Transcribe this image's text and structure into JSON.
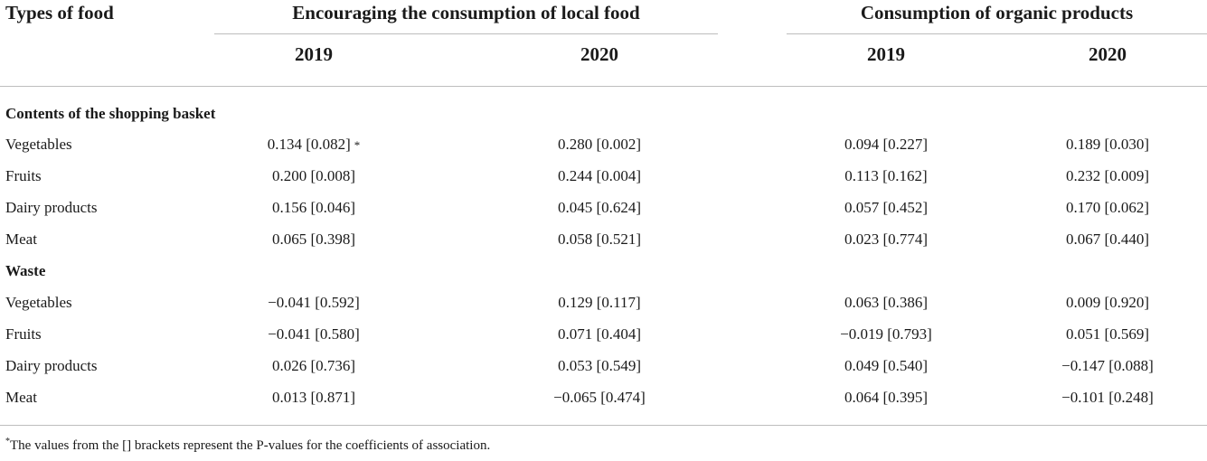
{
  "header": {
    "types_of_food": "Types of food",
    "local_food": "Encouraging the consumption of local food",
    "organic": "Consumption of organic products",
    "years": [
      "2019",
      "2020",
      "2019",
      "2020"
    ]
  },
  "sections": [
    {
      "title": "Contents of the shopping basket",
      "rows": [
        {
          "label": "Vegetables",
          "values": [
            "0.134 [0.082]",
            "0.280 [0.002]",
            "0.094 [0.227]",
            "0.189 [0.030]"
          ],
          "mark": "*"
        },
        {
          "label": "Fruits",
          "values": [
            "0.200 [0.008]",
            "0.244 [0.004]",
            "0.113 [0.162]",
            "0.232 [0.009]"
          ]
        },
        {
          "label": "Dairy products",
          "values": [
            "0.156 [0.046]",
            "0.045 [0.624]",
            "0.057 [0.452]",
            "0.170 [0.062]"
          ]
        },
        {
          "label": "Meat",
          "values": [
            "0.065 [0.398]",
            "0.058 [0.521]",
            "0.023 [0.774]",
            "0.067 [0.440]"
          ]
        }
      ]
    },
    {
      "title": "Waste",
      "rows": [
        {
          "label": "Vegetables",
          "values": [
            "−0.041 [0.592]",
            "0.129 [0.117]",
            "0.063 [0.386]",
            "0.009 [0.920]"
          ]
        },
        {
          "label": "Fruits",
          "values": [
            "−0.041 [0.580]",
            "0.071 [0.404]",
            "−0.019 [0.793]",
            "0.051 [0.569]"
          ]
        },
        {
          "label": "Dairy products",
          "values": [
            "0.026 [0.736]",
            "0.053 [0.549]",
            "0.049 [0.540]",
            "−0.147 [0.088]"
          ]
        },
        {
          "label": "Meat",
          "values": [
            "0.013 [0.871]",
            "−0.065 [0.474]",
            "0.064 [0.395]",
            "−0.101 [0.248]"
          ]
        }
      ]
    }
  ],
  "footnote": {
    "mark": "*",
    "text": "The values from the [] brackets represent the P-values for the coefficients of association."
  }
}
